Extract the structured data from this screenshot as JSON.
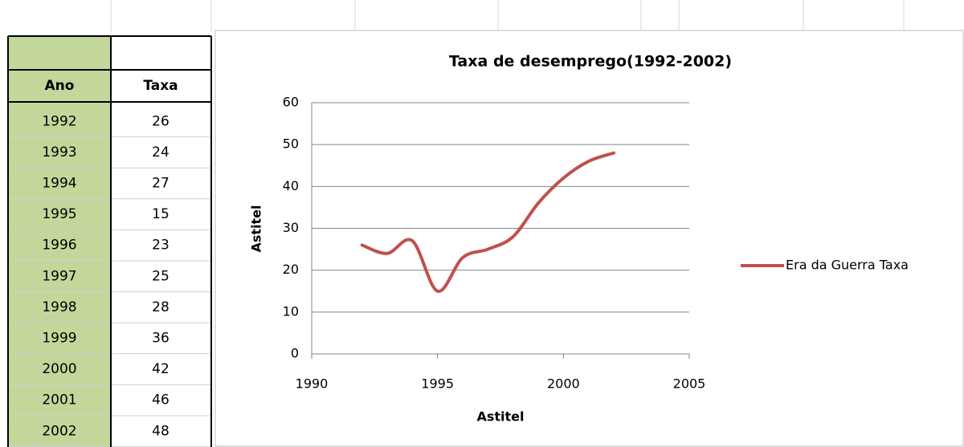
{
  "table": {
    "headers": [
      "Ano",
      "Taxa"
    ]
  },
  "chart_data": {
    "type": "line",
    "title": "Taxa de desemprego(1992-2002)",
    "x_label": "Astitel",
    "y_label": "Astitel",
    "x": [
      1992,
      1993,
      1994,
      1995,
      1996,
      1997,
      1998,
      1999,
      2000,
      2001,
      2002
    ],
    "series": [
      {
        "name": "Era da Guerra Taxa",
        "color": "#c0504d",
        "values": [
          26,
          24,
          27,
          15,
          23,
          25,
          28,
          36,
          42,
          46,
          48
        ]
      }
    ],
    "xlim": [
      1990,
      2005
    ],
    "xticks": [
      1990,
      1995,
      2000,
      2005
    ],
    "ylim": [
      0,
      60
    ],
    "yticks": [
      0,
      10,
      20,
      30,
      40,
      50,
      60
    ],
    "grid": true,
    "smooth": true,
    "legend": "right"
  }
}
